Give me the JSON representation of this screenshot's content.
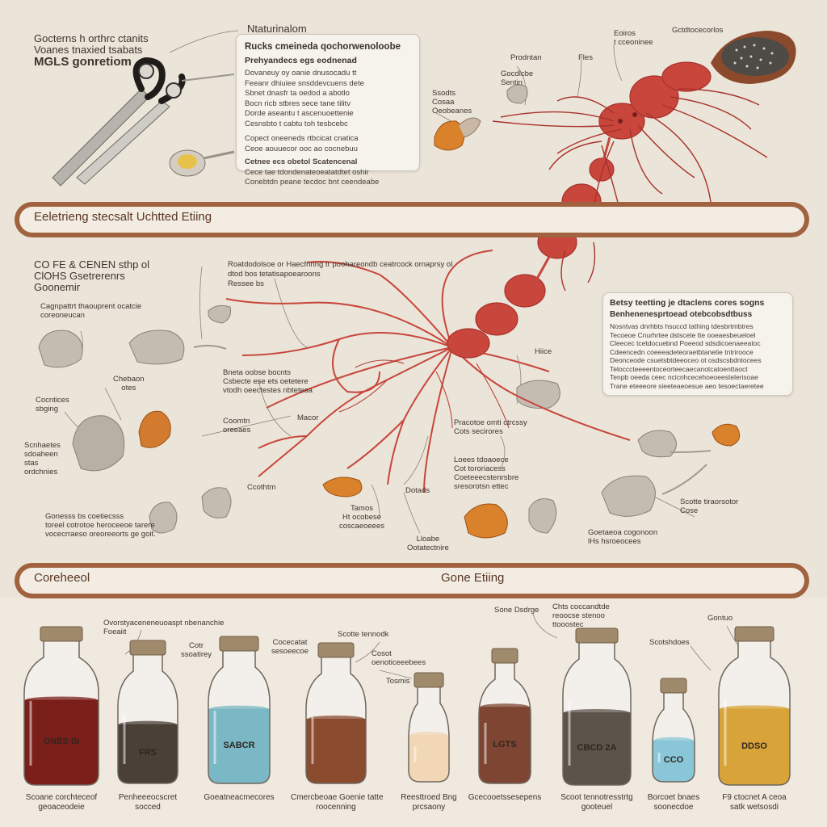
{
  "top_left_text": {
    "line1": "Gocterns h orthrc ctanits",
    "line2": "Voanes tnaxied tsabats",
    "line3": "MGLS gonretiom"
  },
  "info_box_top": {
    "heading": "Ntaturinalom",
    "title": "Rucks cmeineda qochorwenoloobe",
    "subtitle": "Prehyandecs egs eodnenad",
    "lines": [
      "Dovaneuy oy oanie dnusocadu tt",
      "Feeanr dhiuiee snsddevcuens dete",
      "Sbnet dnasfr ta oedod a abotlo",
      "Bocn ricb stbres sece tane tilitv",
      "Dorde aseantu t ascenuoettenie",
      "Cesnsbto t cabtu toh tesbcebc"
    ],
    "p2_lines": [
      "Copect oneeneds rtbcicat cnatica",
      "Ceoe aouuecor ooc ao cocnebuu"
    ],
    "p3_title": "Cetnee ecs obetol Scatencenal",
    "p3_lines": [
      "Cece tae tdondenateoeatatdtet oshir",
      "Conebtdn peane tecdoc bnt ceendeabe"
    ]
  },
  "top_labels": {
    "crab": "Eoiros\nt cceoninee",
    "dish": "Gctdtocecorlos",
    "fles": "Fles",
    "proditon": "Prodntan",
    "center_note": "Gocdlcbe\nSentin",
    "sido": "Ssodts\nCosaa\nOeobeanes"
  },
  "banner_top": {
    "text": "Eeletrieng stecsalt Uchtted Etiing"
  },
  "mid_left_text": {
    "line1": "CO FE & CENEN sthp ol",
    "line2": "ClOHS Gsetrerenrs",
    "line3": "Goonemir",
    "caption": "Cagnpattrt thaouprent ocatcie\ncoreoneucan",
    "caption2": "Roatdodolsoe or Haecfnring tr poohareondb ceatrcock ornaprsy ol",
    "caption2b": "dtod bos tetatisapoearoons",
    "caption2c": "Ressee bs"
  },
  "info_box_mid": {
    "title": "Betsy teetting je dtaclens cores sogns",
    "subtitle": "Benhenenesprtoead otebcobsdtbuss",
    "lines": [
      "Nosntvas dnrhbts hsuccd tathing tdesbrtmbtres",
      "Tecoeoe Cnurhrtee dstscete tte ooeaesbeueloel",
      "Cleecec tcetdocuebnd Poeeod sdsdicoenaeeatoc",
      "Cdeencedn coeeeadeteoraetbtanetie tntrirooce",
      "Deonceode csuetsbtdeeoceo ot osdscsbdntocees",
      "Telocccteeeentoceorteecaecanotcatoenttaoct",
      "Tenpb oeeda ceec ncicnhcecehoeoeestelerisoae",
      "Trane eteeeore sieeteaeoesue aeo tesoectaeretee"
    ]
  },
  "mid_labels": {
    "hiice": "Hiice",
    "chebatn": "Chebaon\notes",
    "lbl_center1": "Bneta oobse bocnts\nCsbecte ese ets oetetere\nvtodh oeectestes nbtetesa",
    "coomtn": "Coomtn\noreeaes",
    "macor": "Macor",
    "ccothtm": "Ccothtm",
    "dotads": "Dotads",
    "contnces": "Cocntices\nsbging",
    "scntics": "Scnhaetes\nsdoaheen\nstas\nordchnies",
    "goneeiss": "Gonesss bs coetiecsss\ntoreel cotrotoe heroceeoe tarere\nvocecrraeso oreoreeorts ge goit.",
    "pracotoe": "Pracotoe omti ctrcssy\nCots secirores",
    "loecsnes": "Loees tdoaoece\nCot tororiacess\nCoeteeecstenrsbre\nsresorotsn ettec",
    "tamos": "Tamos\nHt ocobese\ncoscaeoeees",
    "lloabe": "Lloabe\nOotatectnire",
    "goetaooa": "Goetaeoa cogonoon\nlHs hsroeocees",
    "scotte": "Scotte tiraorsotor\nCose"
  },
  "banner_bottom": {
    "left": "Coreheeol",
    "center": "Gone Etiing"
  },
  "bottom_labels": {
    "oochsb": "Ovorstyaceneneuoaspt nbenanchie\nFoeaiit",
    "cotr": "Cotr\nssoatirey",
    "coocabo": "Cocecatat\nsesoeecoe",
    "scotte2": "Scotte tennodk",
    "cosot": "Cosot\noenoticeeebees",
    "tosmis": "Tosmis",
    "sotce": "Sone Dsdrge",
    "chcs": "Chts coccandtde\nreoocse stenoo\nttooostec",
    "scoshdaes": "Scotshdoes",
    "gontuo": "Gontuo"
  },
  "jars": [
    {
      "label": "ONES tb",
      "color": "#7b1f1a",
      "fill": 0.58,
      "caption": "Scoane corchteceof\ngeoaceodeie"
    },
    {
      "label": "FRS",
      "color": "#4a4037",
      "fill": 0.45,
      "caption": "Penheeeocscret\nsocced"
    },
    {
      "label": "SABCR",
      "color": "#79b8c4",
      "fill": 0.55,
      "caption": "Goeatneacmecores"
    },
    {
      "label": "",
      "color": "#8a4b2f",
      "fill": 0.5,
      "caption": "Cmercbeoae Goenie tatte\nroocenning"
    },
    {
      "label": "",
      "color": "#f1d7b5",
      "fill": 0.48,
      "caption": "Reesttroed Bng\nprcsaony"
    },
    {
      "label": "LGTS",
      "color": "#7e4632",
      "fill": 0.62,
      "caption": "Gcecooetssesepens"
    },
    {
      "label": "CBCD 2A",
      "color": "#5c544b",
      "fill": 0.5,
      "caption": "Scoot tennotresstrtg\ngooteuel"
    },
    {
      "label": "CCO",
      "color": "#89c7d8",
      "fill": 0.45,
      "caption": "Borcoet bnaes\nsoonecdoe"
    },
    {
      "label": "DDSO",
      "color": "#d8a43a",
      "fill": 0.52,
      "caption": "F9 ctocnet A ceoa\nsatk wetsosdi"
    }
  ],
  "colors": {
    "background": "#ebe4d8",
    "banner": "#a0623f",
    "creature": "#c8463c",
    "creature_dark": "#a8322c",
    "morsel": "#d9822b"
  },
  "icons": [
    "scissors-icon",
    "spoon-icon",
    "seed-bowl-icon",
    "crab-creature-illustration",
    "morsel-icon",
    "jar-icon"
  ]
}
